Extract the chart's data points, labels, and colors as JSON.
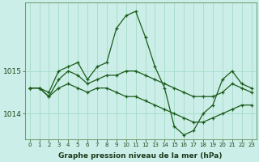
{
  "title": "Graphe pression niveau de la mer (hPa)",
  "bg_color": "#cceee8",
  "plot_bg_color": "#cceee8",
  "grid_color": "#aaddcc",
  "line_color": "#1a5c1a",
  "x_labels": [
    "0",
    "1",
    "2",
    "3",
    "4",
    "5",
    "6",
    "7",
    "8",
    "9",
    "10",
    "11",
    "12",
    "13",
    "14",
    "15",
    "16",
    "17",
    "18",
    "19",
    "20",
    "21",
    "22",
    "23"
  ],
  "y_ticks": [
    1014,
    1015
  ],
  "ylim": [
    1013.4,
    1016.6
  ],
  "series_main": [
    1014.6,
    1014.6,
    1014.5,
    1015.0,
    1015.1,
    1015.2,
    1014.8,
    1015.1,
    1015.2,
    1016.0,
    1016.3,
    1016.4,
    1015.8,
    1015.1,
    1014.6,
    1013.7,
    1013.5,
    1013.6,
    1014.0,
    1014.2,
    1014.8,
    1015.0,
    1014.7,
    1014.6
  ],
  "series_upper": [
    1014.6,
    1014.6,
    1014.4,
    1014.8,
    1015.0,
    1014.9,
    1014.7,
    1014.8,
    1014.9,
    1014.9,
    1015.0,
    1015.0,
    1014.9,
    1014.8,
    1014.7,
    1014.6,
    1014.5,
    1014.4,
    1014.4,
    1014.4,
    1014.5,
    1014.7,
    1014.6,
    1014.5
  ],
  "series_lower": [
    1014.6,
    1014.6,
    1014.4,
    1014.6,
    1014.7,
    1014.6,
    1014.5,
    1014.6,
    1014.6,
    1014.5,
    1014.4,
    1014.4,
    1014.3,
    1014.2,
    1014.1,
    1014.0,
    1013.9,
    1013.8,
    1013.8,
    1013.9,
    1014.0,
    1014.1,
    1014.2,
    1014.2
  ]
}
